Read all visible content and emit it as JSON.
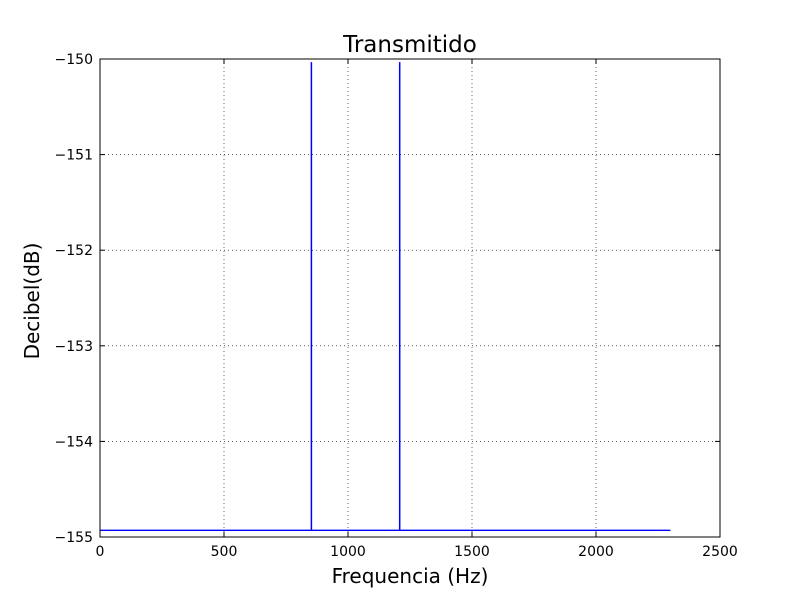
{
  "chart_data": {
    "type": "line",
    "title": "Transmitido",
    "xlabel": "Frequencia (Hz)",
    "ylabel": "Decibel(dB)",
    "xlim": [
      0,
      2500
    ],
    "ylim": [
      -155,
      -150
    ],
    "xticks": [
      0,
      500,
      1000,
      1500,
      2000,
      2500
    ],
    "yticks": [
      -150,
      -151,
      -152,
      -153,
      -154,
      -155
    ],
    "xtick_labels": [
      "0",
      "500",
      "1000",
      "1500",
      "2000",
      "2500"
    ],
    "ytick_labels": [
      "−150",
      "−151",
      "−152",
      "−153",
      "−154",
      "−155"
    ],
    "grid": true,
    "series": [
      {
        "color": "#0000ff",
        "x": [
          0,
          852,
          852,
          853,
          853,
          1208,
          1208,
          1209,
          1209,
          2300
        ],
        "y": [
          -154.93,
          -154.93,
          -150.04,
          -150.04,
          -154.93,
          -154.93,
          -150.04,
          -150.04,
          -154.93,
          -154.93
        ]
      }
    ]
  }
}
